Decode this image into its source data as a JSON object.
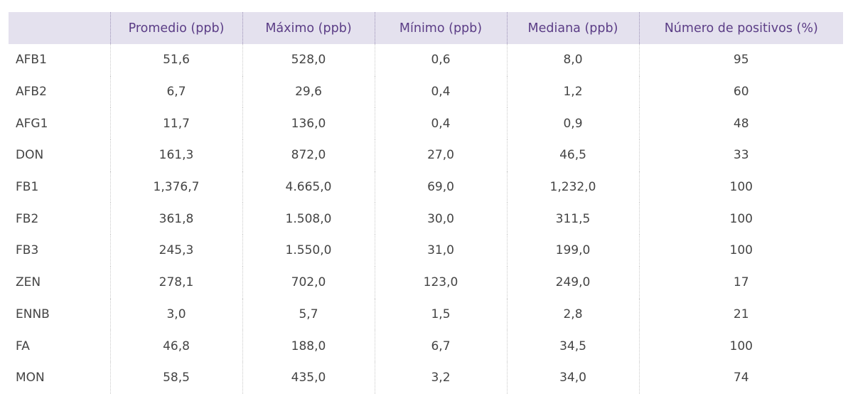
{
  "table": {
    "headers": [
      "",
      "Promedio (ppb)",
      "Máximo (ppb)",
      "Mínimo (ppb)",
      "Mediana (ppb)",
      "Número de positivos (%)"
    ],
    "rows": [
      [
        "AFB1",
        "51,6",
        "528,0",
        "0,6",
        "8,0",
        "95"
      ],
      [
        "AFB2",
        "6,7",
        "29,6",
        "0,4",
        "1,2",
        "60"
      ],
      [
        "AFG1",
        "11,7",
        "136,0",
        "0,4",
        "0,9",
        "48"
      ],
      [
        "DON",
        "161,3",
        "872,0",
        "27,0",
        "46,5",
        "33"
      ],
      [
        "FB1",
        "1,376,7",
        "4.665,0",
        "69,0",
        "1,232,0",
        "100"
      ],
      [
        "FB2",
        "361,8",
        "1.508,0",
        "30,0",
        "311,5",
        "100"
      ],
      [
        "FB3",
        "245,3",
        "1.550,0",
        "31,0",
        "199,0",
        "100"
      ],
      [
        "ZEN",
        "278,1",
        "702,0",
        "123,0",
        "249,0",
        "17"
      ],
      [
        "ENNB",
        "3,0",
        "5,7",
        "1,5",
        "2,8",
        "21"
      ],
      [
        "FA",
        "46,8",
        "188,0",
        "6,7",
        "34,5",
        "100"
      ],
      [
        "MON",
        "58,5",
        "435,0",
        "3,2",
        "34,0",
        "74"
      ]
    ]
  }
}
